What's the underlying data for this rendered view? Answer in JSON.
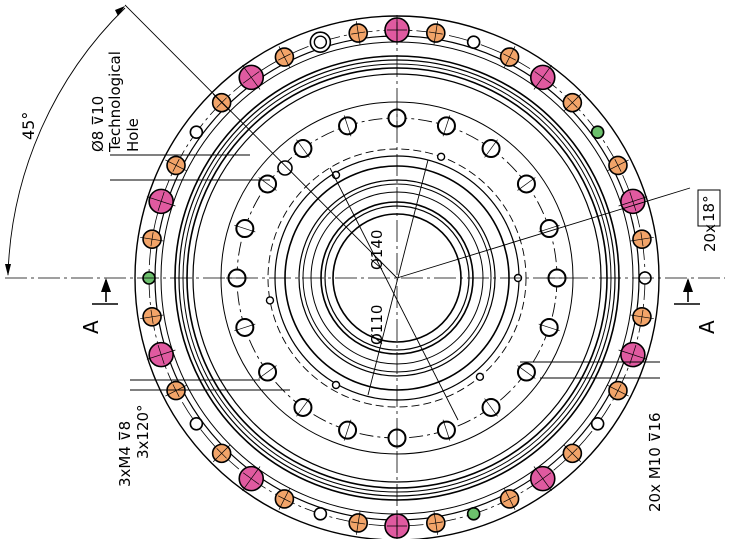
{
  "drawing": {
    "section_mark": "A",
    "angle_label": "45°",
    "tech_hole_dim": "Ø8 ⊽10",
    "tech_hole_text_1": "Technological",
    "tech_hole_text_2": "Hole",
    "m4_dim": "3xM4 ⊽8",
    "m4_pattern": "3x120°",
    "m10_dim": "20x M10 ⊽16",
    "pitch_count": "20x",
    "pitch_angle": "18°",
    "inner_dia_1": "Ø140",
    "inner_dia_2": "Ø110"
  },
  "colors": {
    "pink": "#e05aa0",
    "orange": "#f2a469",
    "green": "#6cc06c",
    "line": "#000000"
  },
  "hole_rings": {
    "outer_color_sequence": [
      "pink",
      "orange",
      "white",
      "orange",
      "pink",
      "orange",
      "green",
      "orange",
      "pink",
      "orange",
      "white",
      "orange",
      "pink",
      "orange",
      "white",
      "orange",
      "pink",
      "orange",
      "green",
      "orange",
      "pink",
      "orange",
      "white",
      "orange",
      "pink",
      "orange",
      "white",
      "orange",
      "pink",
      "orange",
      "green",
      "orange",
      "pink",
      "orange",
      "white",
      "orange",
      "pink",
      "orange",
      "double",
      "orange"
    ],
    "outer_count": 40,
    "inner_count": 20
  }
}
